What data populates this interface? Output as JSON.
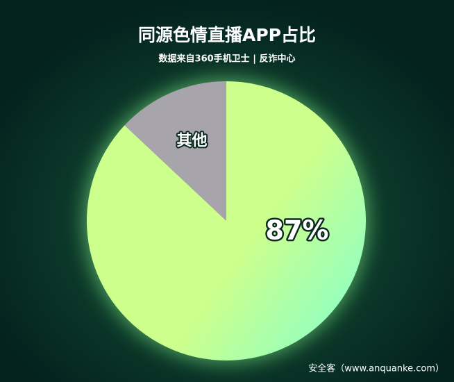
{
  "chart_data": {
    "type": "pie",
    "title": "同源色情直播APP占比",
    "subtitle": "数据来自360手机卫士 | 反诈中心",
    "categories": [
      null,
      "其他"
    ],
    "values": [
      87,
      13
    ],
    "value_labels": [
      "87%",
      null
    ],
    "colors": [
      "#ccff8c",
      "#a7a4ab"
    ]
  },
  "watermark": "安全客（www.anquanke.com）"
}
